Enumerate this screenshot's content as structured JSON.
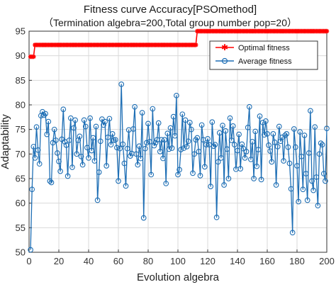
{
  "chart_data": {
    "type": "line",
    "title": "Fitness curve Accuracy[PSOmethod]",
    "subtitle": "（Termination algebra=200,Total group number pop=20）",
    "xlabel": "Evolution algebra",
    "ylabel": "Adaptability",
    "xlim": [
      0,
      200
    ],
    "ylim": [
      50,
      95
    ],
    "x_ticks": [
      "0",
      "20",
      "40",
      "60",
      "80",
      "100",
      "120",
      "140",
      "160",
      "180",
      "200"
    ],
    "y_ticks": [
      "50",
      "55",
      "60",
      "65",
      "70",
      "75",
      "80",
      "85",
      "90",
      "95"
    ],
    "grid": true,
    "legend_position": "top-right",
    "series": [
      {
        "name": "Optimal fitness",
        "color": "#ff0000",
        "marker": "star",
        "x": [
          1,
          2,
          3,
          4,
          5,
          6,
          7,
          8,
          9,
          10,
          11,
          12,
          13,
          14,
          15,
          16,
          17,
          18,
          19,
          20,
          21,
          22,
          23,
          24,
          25,
          26,
          27,
          28,
          29,
          30,
          31,
          32,
          33,
          34,
          35,
          36,
          37,
          38,
          39,
          40,
          41,
          42,
          43,
          44,
          45,
          46,
          47,
          48,
          49,
          50,
          51,
          52,
          53,
          54,
          55,
          56,
          57,
          58,
          59,
          60,
          61,
          62,
          63,
          64,
          65,
          66,
          67,
          68,
          69,
          70,
          71,
          72,
          73,
          74,
          75,
          76,
          77,
          78,
          79,
          80,
          81,
          82,
          83,
          84,
          85,
          86,
          87,
          88,
          89,
          90,
          91,
          92,
          93,
          94,
          95,
          96,
          97,
          98,
          99,
          100,
          101,
          102,
          103,
          104,
          105,
          106,
          107,
          108,
          109,
          110,
          111,
          112,
          113,
          114,
          115,
          116,
          117,
          118,
          119,
          120,
          121,
          122,
          123,
          124,
          125,
          126,
          127,
          128,
          129,
          130,
          131,
          132,
          133,
          134,
          135,
          136,
          137,
          138,
          139,
          140,
          141,
          142,
          143,
          144,
          145,
          146,
          147,
          148,
          149,
          150,
          151,
          152,
          153,
          154,
          155,
          156,
          157,
          158,
          159,
          160,
          161,
          162,
          163,
          164,
          165,
          166,
          167,
          168,
          169,
          170,
          171,
          172,
          173,
          174,
          175,
          176,
          177,
          178,
          179,
          180,
          181,
          182,
          183,
          184,
          185,
          186,
          187,
          188,
          189,
          190,
          191,
          192,
          193,
          194,
          195,
          196,
          197,
          198,
          199,
          200
        ],
        "values": [
          89.8,
          89.8,
          89.8,
          92.2,
          92.2,
          92.2,
          92.2,
          92.2,
          92.2,
          92.2,
          92.2,
          92.2,
          92.2,
          92.2,
          92.2,
          92.2,
          92.2,
          92.2,
          92.2,
          92.2,
          92.2,
          92.2,
          92.2,
          92.2,
          92.2,
          92.2,
          92.2,
          92.2,
          92.2,
          92.2,
          92.2,
          92.2,
          92.2,
          92.2,
          92.2,
          92.2,
          92.2,
          92.2,
          92.2,
          92.2,
          92.2,
          92.2,
          92.2,
          92.2,
          92.2,
          92.2,
          92.2,
          92.2,
          92.2,
          92.2,
          92.2,
          92.2,
          92.2,
          92.2,
          92.2,
          92.2,
          92.2,
          92.2,
          92.2,
          92.2,
          92.2,
          92.2,
          92.2,
          92.2,
          92.2,
          92.2,
          92.2,
          92.2,
          92.2,
          92.2,
          92.2,
          92.2,
          92.2,
          92.2,
          92.2,
          92.2,
          92.2,
          92.2,
          92.2,
          92.2,
          92.2,
          92.2,
          92.2,
          92.2,
          92.2,
          92.2,
          92.2,
          92.2,
          92.2,
          92.2,
          92.2,
          92.2,
          92.2,
          92.2,
          92.2,
          92.2,
          92.2,
          92.2,
          92.2,
          92.2,
          92.2,
          92.2,
          92.2,
          92.2,
          92.2,
          92.2,
          92.2,
          92.2,
          92.2,
          92.2,
          92.2,
          92.2,
          95.0,
          95.0,
          95.0,
          95.0,
          95.0,
          95.0,
          95.0,
          95.0,
          95.0,
          95.0,
          95.0,
          95.0,
          95.0,
          95.0,
          95.0,
          95.0,
          95.0,
          95.0,
          95.0,
          95.0,
          95.0,
          95.0,
          95.0,
          95.0,
          95.0,
          95.0,
          95.0,
          95.0,
          95.0,
          95.0,
          95.0,
          95.0,
          95.0,
          95.0,
          95.0,
          95.0,
          95.0,
          95.0,
          95.0,
          95.0,
          95.0,
          95.0,
          95.0,
          95.0,
          95.0,
          95.0,
          95.0,
          95.0,
          95.0,
          95.0,
          95.0,
          95.0,
          95.0,
          95.0,
          95.0,
          95.0,
          95.0,
          95.0,
          95.0,
          95.0,
          95.0,
          95.0,
          95.0,
          95.0,
          95.0,
          95.0,
          95.0,
          95.0,
          95.0,
          95.0,
          95.0,
          95.0,
          95.0,
          95.0,
          95.0,
          95.0,
          95.0,
          95.0,
          95.0,
          95.0,
          95.0,
          95.0,
          95.0,
          95.0,
          95.0,
          95.0,
          95.0,
          95.0
        ]
      },
      {
        "name": "Average fitness",
        "color": "#1f6fb5",
        "marker": "circle",
        "x": [
          1,
          2,
          3,
          4,
          5,
          6,
          7,
          8,
          9,
          10,
          11,
          12,
          13,
          14,
          15,
          16,
          17,
          18,
          19,
          20,
          21,
          22,
          23,
          24,
          25,
          26,
          27,
          28,
          29,
          30,
          31,
          32,
          33,
          34,
          35,
          36,
          37,
          38,
          39,
          40,
          41,
          42,
          43,
          44,
          45,
          46,
          47,
          48,
          49,
          50,
          51,
          52,
          53,
          54,
          55,
          56,
          57,
          58,
          59,
          60,
          61,
          62,
          63,
          64,
          65,
          66,
          67,
          68,
          69,
          70,
          71,
          72,
          73,
          74,
          75,
          76,
          77,
          78,
          79,
          80,
          81,
          82,
          83,
          84,
          85,
          86,
          87,
          88,
          89,
          90,
          91,
          92,
          93,
          94,
          95,
          96,
          97,
          98,
          99,
          100,
          101,
          102,
          103,
          104,
          105,
          106,
          107,
          108,
          109,
          110,
          111,
          112,
          113,
          114,
          115,
          116,
          117,
          118,
          119,
          120,
          121,
          122,
          123,
          124,
          125,
          126,
          127,
          128,
          129,
          130,
          131,
          132,
          133,
          134,
          135,
          136,
          137,
          138,
          139,
          140,
          141,
          142,
          143,
          144,
          145,
          146,
          147,
          148,
          149,
          150,
          151,
          152,
          153,
          154,
          155,
          156,
          157,
          158,
          159,
          160,
          161,
          162,
          163,
          164,
          165,
          166,
          167,
          168,
          169,
          170,
          171,
          172,
          173,
          174,
          175,
          176,
          177,
          178,
          179,
          180,
          181,
          182,
          183,
          184,
          185,
          186,
          187,
          188,
          189,
          190,
          191,
          192,
          193,
          194,
          195,
          196,
          197,
          198,
          199,
          200
        ],
        "values": [
          50.5,
          62.8,
          71.5,
          69.2,
          75.5,
          70.8,
          68.0,
          77.8,
          78.6,
          77.9,
          78.2,
          74.0,
          76.6,
          64.5,
          64.2,
          72.3,
          75.0,
          72.8,
          70.2,
          68.5,
          66.5,
          73.0,
          79.1,
          72.5,
          71.8,
          65.5,
          72.8,
          77.3,
          67.3,
          75.3,
          76.9,
          70.0,
          72.8,
          73.6,
          69.5,
          67.8,
          76.9,
          75.6,
          71.3,
          69.2,
          77.3,
          70.7,
          73.3,
          68.6,
          75.6,
          60.6,
          66.3,
          72.6,
          77.1,
          75.9,
          76.6,
          67.6,
          73.4,
          77.2,
          71.9,
          74.1,
          72.8,
          72.9,
          71.3,
          64.5,
          71.1,
          84.2,
          72.0,
          68.1,
          63.5,
          71.1,
          74.9,
          69.6,
          70.1,
          75.1,
          79.6,
          70.0,
          67.8,
          71.6,
          69.1,
          78.4,
          57.0,
          71.1,
          72.3,
          76.2,
          72.5,
          65.8,
          79.2,
          71.7,
          72.3,
          72.9,
          76.3,
          70.5,
          72.9,
          69.1,
          72.9,
          64.0,
          74.2,
          71.0,
          75.3,
          71.2,
          77.6,
          73.7,
          81.9,
          65.8,
          66.8,
          70.9,
          78.1,
          71.2,
          76.9,
          71.5,
          72.6,
          76.4,
          75.0,
          66.1,
          70.0,
          72.9,
          73.3,
          70.5,
          65.6,
          75.9,
          72.9,
          67.4,
          71.9,
          73.1,
          71.9,
          63.4,
          76.5,
          71.6,
          71.9,
          57.1,
          68.4,
          74.3,
          69.2,
          75.8,
          63.7,
          74.7,
          71.0,
          65.0,
          77.3,
          72.8,
          75.7,
          71.9,
          66.9,
          70.7,
          74.0,
          67.0,
          72.0,
          71.1,
          69.2,
          70.5,
          75.4,
          79.6,
          68.9,
          72.5,
          65.0,
          74.6,
          67.5,
          70.9,
          77.7,
          64.8,
          76.4,
          73.9,
          76.7,
          74.1,
          71.8,
          70.6,
          68.4,
          74.1,
          72.4,
          63.7,
          71.5,
          75.6,
          72.6,
          73.4,
          68.6,
          73.8,
          74.1,
          71.4,
          68.1,
          62.9,
          54.0,
          75.1,
          71.4,
          67.6,
          60.3,
          74.5,
          69.5,
          62.8,
          73.8,
          66.0,
          60.6,
          70.2,
          78.8,
          64.5,
          62.6,
          75.5,
          65.3,
          59.5,
          70.0,
          72.2,
          71.9,
          66.0,
          64.5,
          75.2
        ]
      }
    ]
  }
}
